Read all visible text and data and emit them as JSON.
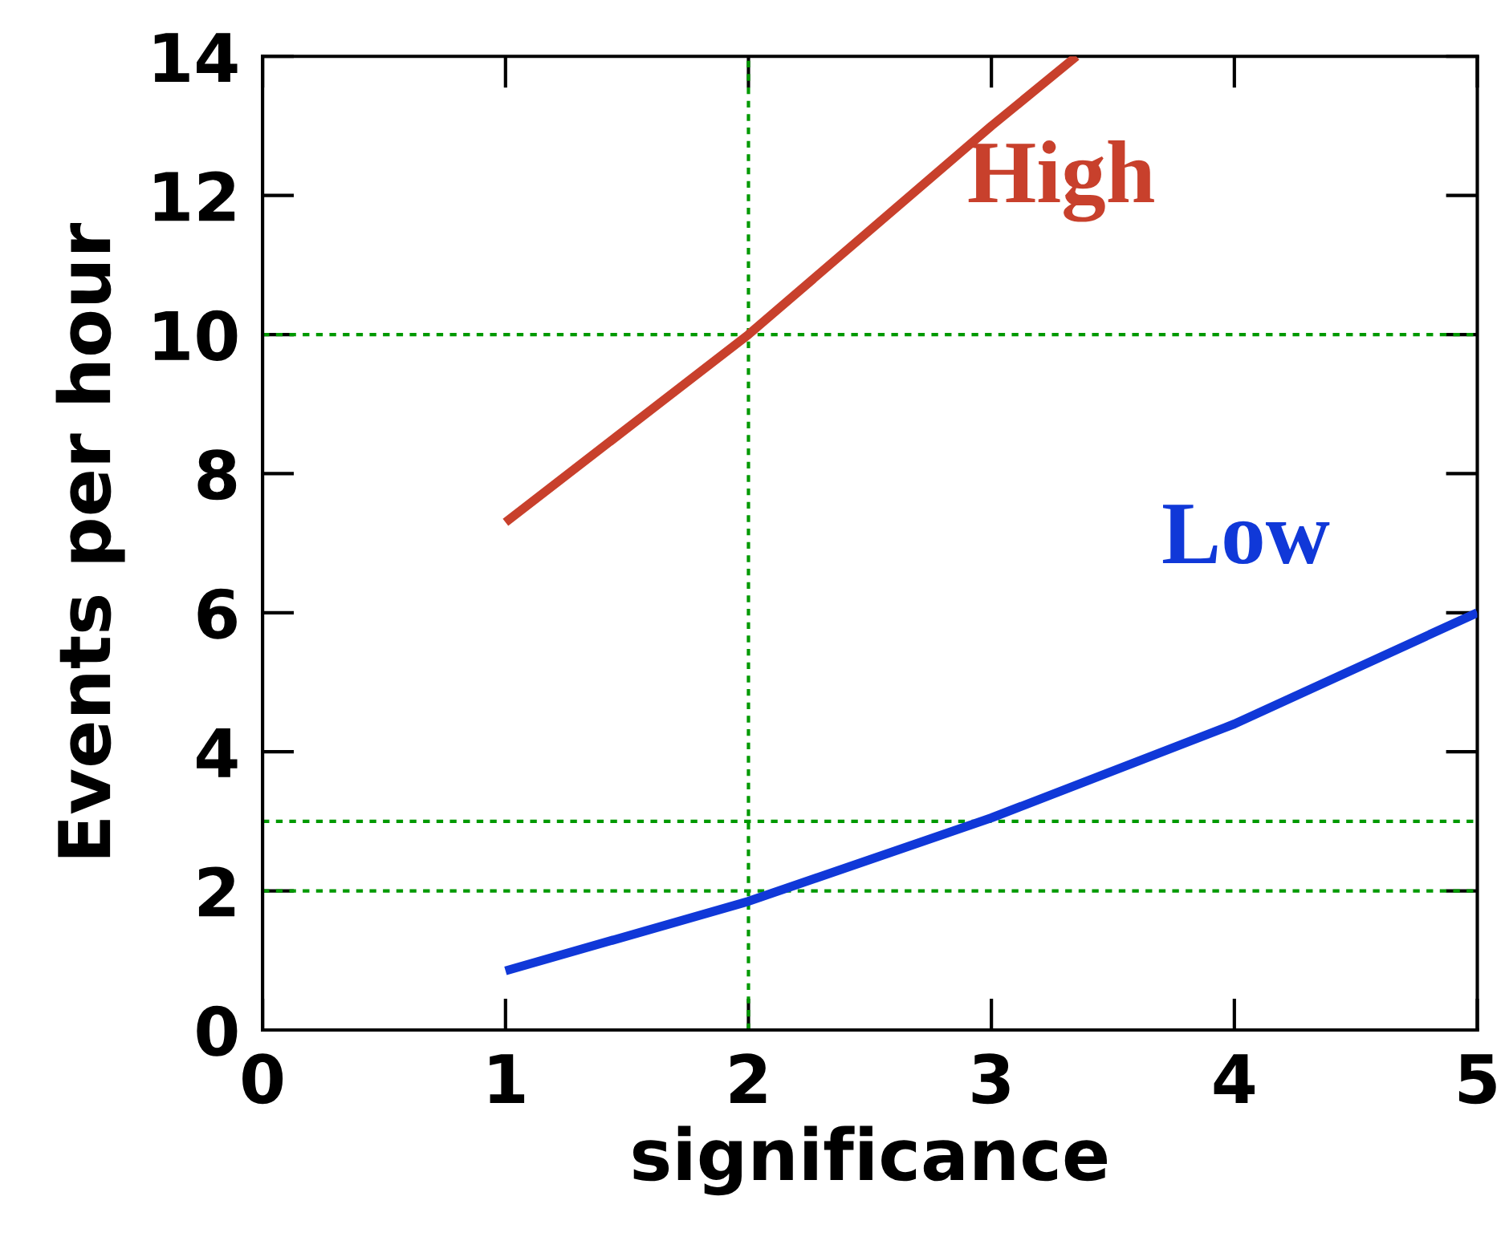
{
  "chart_data": {
    "type": "line",
    "xlabel": "significance",
    "ylabel": "Events per hour",
    "series": [
      {
        "name": "High",
        "color": "#c8402c",
        "x": [
          1,
          2,
          3,
          3.35
        ],
        "values": [
          7.3,
          10.0,
          13.0,
          14.0
        ]
      },
      {
        "name": "Low",
        "color": "#1038d8",
        "x": [
          1,
          2,
          3,
          4,
          5
        ],
        "values": [
          0.85,
          1.85,
          3.05,
          4.4,
          6.0
        ]
      }
    ],
    "xlim": [
      0,
      5
    ],
    "ylim": [
      0,
      14
    ],
    "xticks": [
      0,
      1,
      2,
      3,
      4,
      5
    ],
    "yticks": [
      0,
      2,
      4,
      6,
      8,
      10,
      12,
      14
    ],
    "ref_lines": [
      {
        "axis": "x",
        "value": 2,
        "color": "#009900",
        "line_style": "dotted"
      },
      {
        "axis": "y",
        "value": 10,
        "color": "#009900",
        "line_style": "dotted"
      },
      {
        "axis": "y",
        "value": 3,
        "color": "#009900",
        "line_style": "dotted"
      },
      {
        "axis": "y",
        "value": 2,
        "color": "#009900",
        "line_style": "dotted"
      }
    ],
    "grid": false,
    "legend": false,
    "marker": "none",
    "line_style": "solid"
  }
}
